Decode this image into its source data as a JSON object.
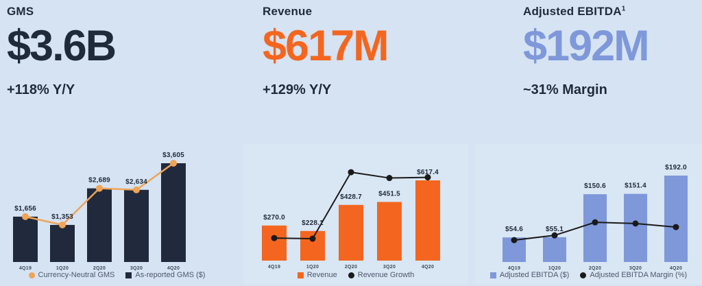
{
  "panels": [
    {
      "title": "GMS",
      "title_superscript": "",
      "big_value": "$3.6B",
      "value_color": "#1f2a3a",
      "subtitle": "+118% Y/Y"
    },
    {
      "title": "Revenue",
      "title_superscript": "",
      "big_value": "$617M",
      "value_color": "#f4661f",
      "subtitle": "+129% Y/Y"
    },
    {
      "title": "Adjusted EBITDA",
      "title_superscript": "1",
      "big_value": "$192M",
      "value_color": "#7e98da",
      "subtitle": "~31% Margin"
    }
  ],
  "colors": {
    "page_background": "#d5e3f3",
    "chart_panel_background": "#d9e6f4",
    "navy": "#212a3c",
    "orange": "#f4661f",
    "light_orange": "#efa456",
    "periwinkle": "#7e98da",
    "black_line": "#1a1a1a"
  },
  "chart_data": [
    {
      "type": "bar",
      "title": "GMS",
      "categories": [
        "4Q19",
        "1Q20",
        "2Q20",
        "3Q20",
        "4Q20"
      ],
      "series": [
        {
          "name": "As-reported GMS ($)",
          "kind": "bar",
          "color": "#212a3c",
          "values": [
            1656,
            1353,
            2689,
            2634,
            3605
          ],
          "value_labels": [
            "$1,656",
            "$1,353",
            "$2,689",
            "$2,634",
            "$3,605"
          ]
        },
        {
          "name": "Currency-Neutral GMS",
          "kind": "line",
          "color": "#efa456",
          "values": [
            1656,
            1353,
            2689,
            2634,
            3605
          ]
        }
      ],
      "ylim": [
        0,
        3800
      ],
      "grid": false,
      "legend_position": "bottom",
      "legend": [
        {
          "label": "Currency-Neutral GMS",
          "marker": "circle",
          "color": "#efa456"
        },
        {
          "label": "As-reported GMS ($)",
          "marker": "square",
          "color": "#212a3c"
        }
      ]
    },
    {
      "type": "bar",
      "title": "Revenue",
      "categories": [
        "4Q19",
        "1Q20",
        "2Q20",
        "3Q20",
        "4Q20"
      ],
      "series": [
        {
          "name": "Revenue",
          "kind": "bar",
          "color": "#f4661f",
          "values": [
            270.0,
            228.1,
            428.7,
            451.5,
            617.4
          ],
          "value_labels": [
            "$270.0",
            "$228.1",
            "$428.7",
            "$451.5",
            "$617.4"
          ]
        },
        {
          "name": "Revenue Growth",
          "kind": "line",
          "color": "#1a1a1a",
          "values": [
            35,
            34,
            137,
            128,
            129
          ]
        }
      ],
      "ylim": [
        0,
        650
      ],
      "grid": false,
      "legend_position": "bottom",
      "legend": [
        {
          "label": "Revenue",
          "marker": "square",
          "color": "#f4661f"
        },
        {
          "label": "Revenue Growth",
          "marker": "circle",
          "color": "#1a1a1a"
        }
      ]
    },
    {
      "type": "bar",
      "title": "Adjusted EBITDA",
      "categories": [
        "4Q19",
        "1Q20",
        "2Q20",
        "3Q20",
        "4Q20"
      ],
      "series": [
        {
          "name": "Adjusted EBITDA ($)",
          "kind": "bar",
          "color": "#7e98da",
          "values": [
            54.6,
            55.1,
            150.6,
            151.4,
            192.0
          ],
          "value_labels": [
            "$54.6",
            "$55.1",
            "$150.6",
            "$151.4",
            "$192.0"
          ]
        },
        {
          "name": "Adjusted EBITDA Margin (%)",
          "kind": "line",
          "color": "#1a1a1a",
          "values": [
            20,
            24,
            35,
            34,
            31
          ]
        }
      ],
      "ylim": [
        0,
        210
      ],
      "grid": false,
      "legend_position": "bottom",
      "legend": [
        {
          "label": "Adjusted EBITDA ($)",
          "marker": "square",
          "color": "#7e98da"
        },
        {
          "label": "Adjusted EBITDA Margin (%)",
          "marker": "circle",
          "color": "#1a1a1a"
        }
      ]
    }
  ]
}
